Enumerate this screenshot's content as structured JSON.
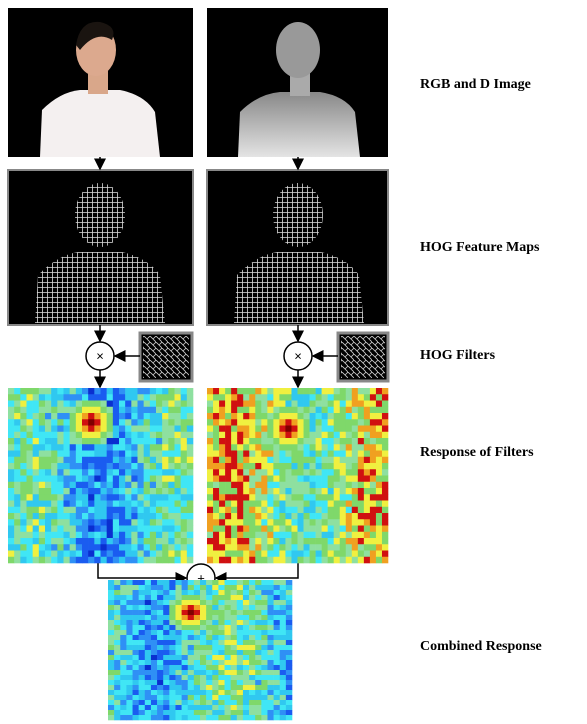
{
  "labels": {
    "rgbd": "RGB and D Image",
    "hog_maps": "HOG Feature Maps",
    "hog_filters": "HOG Filters",
    "response": "Response of  Filters",
    "combined": "Combined Response"
  },
  "operators": {
    "multiply_left": "×",
    "multiply_right": "×",
    "add": "+"
  }
}
